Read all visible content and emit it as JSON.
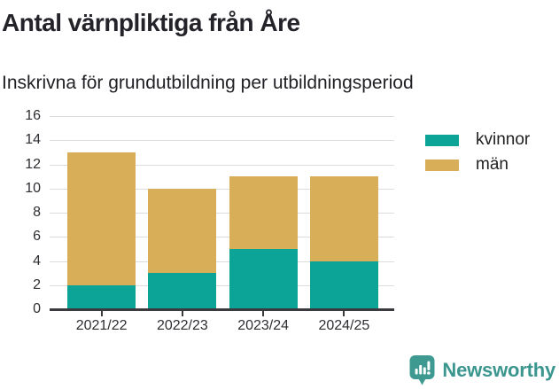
{
  "chart_data": {
    "type": "bar",
    "stacked": true,
    "title": "Antal värnpliktiga från Åre",
    "subtitle": "Inskrivna för grundutbildning per utbildningsperiod",
    "categories": [
      "2021/22",
      "2022/23",
      "2023/24",
      "2024/25"
    ],
    "series": [
      {
        "name": "kvinnor",
        "color": "#0ca496",
        "values": [
          2,
          3,
          5,
          4
        ]
      },
      {
        "name": "män",
        "color": "#d9ae58",
        "values": [
          11,
          7,
          6,
          7
        ]
      }
    ],
    "totals": [
      13,
      10,
      11,
      11
    ],
    "xlabel": "",
    "ylabel": "",
    "ylim": [
      0,
      16
    ],
    "ytick_step": 2,
    "grid": true,
    "legend_position": "right"
  },
  "branding": {
    "wordmark": "Newsworthy",
    "logo_icon": "bar-chart-speech-bubble-icon",
    "color": "#3a968e",
    "icon_color": "#3e9990"
  },
  "colors": {
    "axis": "#3a3a3f",
    "gridline": "#dcdcdc",
    "tick_text": "#2e2e33",
    "title_text": "#232329"
  }
}
